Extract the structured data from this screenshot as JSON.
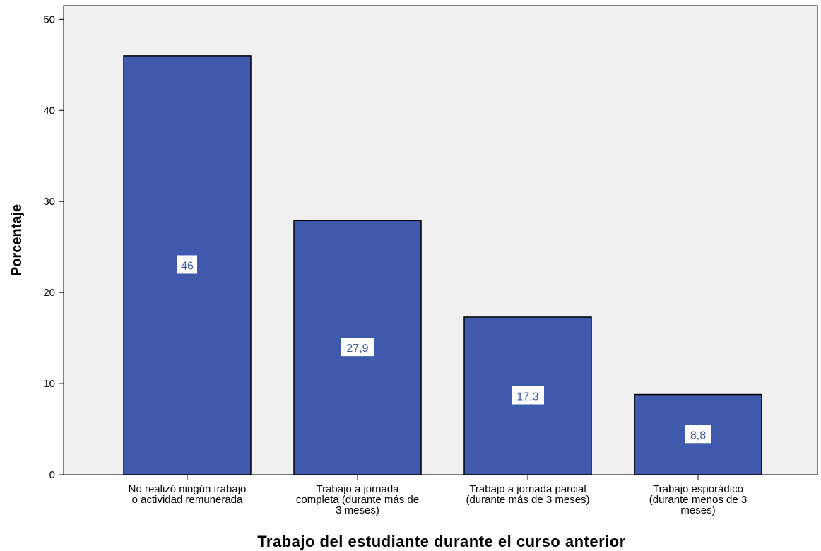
{
  "chart_data": {
    "type": "bar",
    "categories": [
      [
        "No realizó ningún trabajo",
        "o actividad remunerada"
      ],
      [
        "Trabajo a jornada",
        "completa (durante más de",
        "3 meses)"
      ],
      [
        "Trabajo a jornada parcial",
        "(durante más de 3 meses)"
      ],
      [
        "Trabajo esporádico",
        "(durante menos de 3",
        "meses)"
      ]
    ],
    "values": [
      46,
      27.9,
      17.3,
      8.8
    ],
    "data_labels": [
      "46",
      "27,9",
      "17,3",
      "8,8"
    ],
    "xlabel": "Trabajo del estudiante durante el curso anterior",
    "ylabel": "Porcentaje",
    "ylim": [
      0,
      51.5
    ],
    "yticks": [
      0,
      10,
      20,
      30,
      40,
      50
    ],
    "grid": false,
    "colors": {
      "bar_fill": "#3f59ad",
      "bar_stroke": "#000000",
      "plot_background": "#f0f0f0",
      "data_label_text": "#3a5aa8",
      "data_label_background": "#ffffff"
    }
  }
}
